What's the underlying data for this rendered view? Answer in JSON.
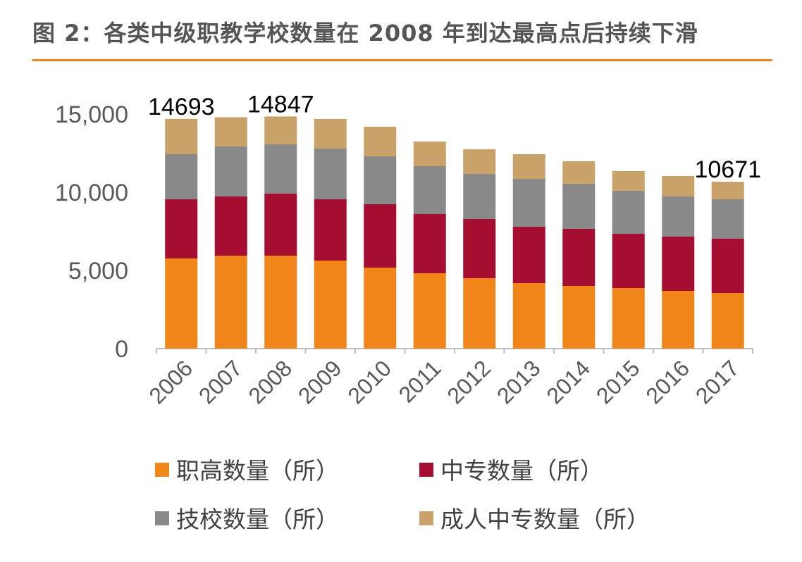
{
  "title": "图 2：各类中级职教学校数量在 2008 年到达最高点后持续下滑",
  "chart_data": {
    "type": "bar",
    "stacked": true,
    "categories": [
      "2006",
      "2007",
      "2008",
      "2009",
      "2010",
      "2011",
      "2012",
      "2013",
      "2014",
      "2015",
      "2016",
      "2017"
    ],
    "series": [
      {
        "name": "职高数量（所）",
        "color": "#f0851a",
        "values": [
          5766,
          5946,
          5946,
          5630,
          5180,
          4820,
          4505,
          4189,
          4009,
          3874,
          3694,
          3559
        ]
      },
      {
        "name": "中专数量（所）",
        "color": "#a50d31",
        "values": [
          3784,
          3784,
          3964,
          3920,
          4054,
          3784,
          3783,
          3604,
          3649,
          3468,
          3468,
          3468
        ]
      },
      {
        "name": "技校数量（所）",
        "color": "#898989",
        "values": [
          2882,
          3198,
          3153,
          3243,
          3063,
          3063,
          2883,
          3063,
          2882,
          2748,
          2568,
          2523
        ]
      },
      {
        "name": "成人中专数量（所）",
        "color": "#c9a26a",
        "values": [
          2261,
          1872,
          1784,
          1892,
          1892,
          1576,
          1577,
          1576,
          1442,
          1261,
          1306,
          1121
        ]
      }
    ],
    "annotations": [
      {
        "category": "2006",
        "text": "14693"
      },
      {
        "category": "2008",
        "text": "14847"
      },
      {
        "category": "2017",
        "text": "10671"
      }
    ],
    "yticks": [
      "0",
      "5,000",
      "10,000",
      "15,000"
    ],
    "ylim": [
      0,
      15000
    ],
    "grid": false,
    "legend": "bottom"
  }
}
